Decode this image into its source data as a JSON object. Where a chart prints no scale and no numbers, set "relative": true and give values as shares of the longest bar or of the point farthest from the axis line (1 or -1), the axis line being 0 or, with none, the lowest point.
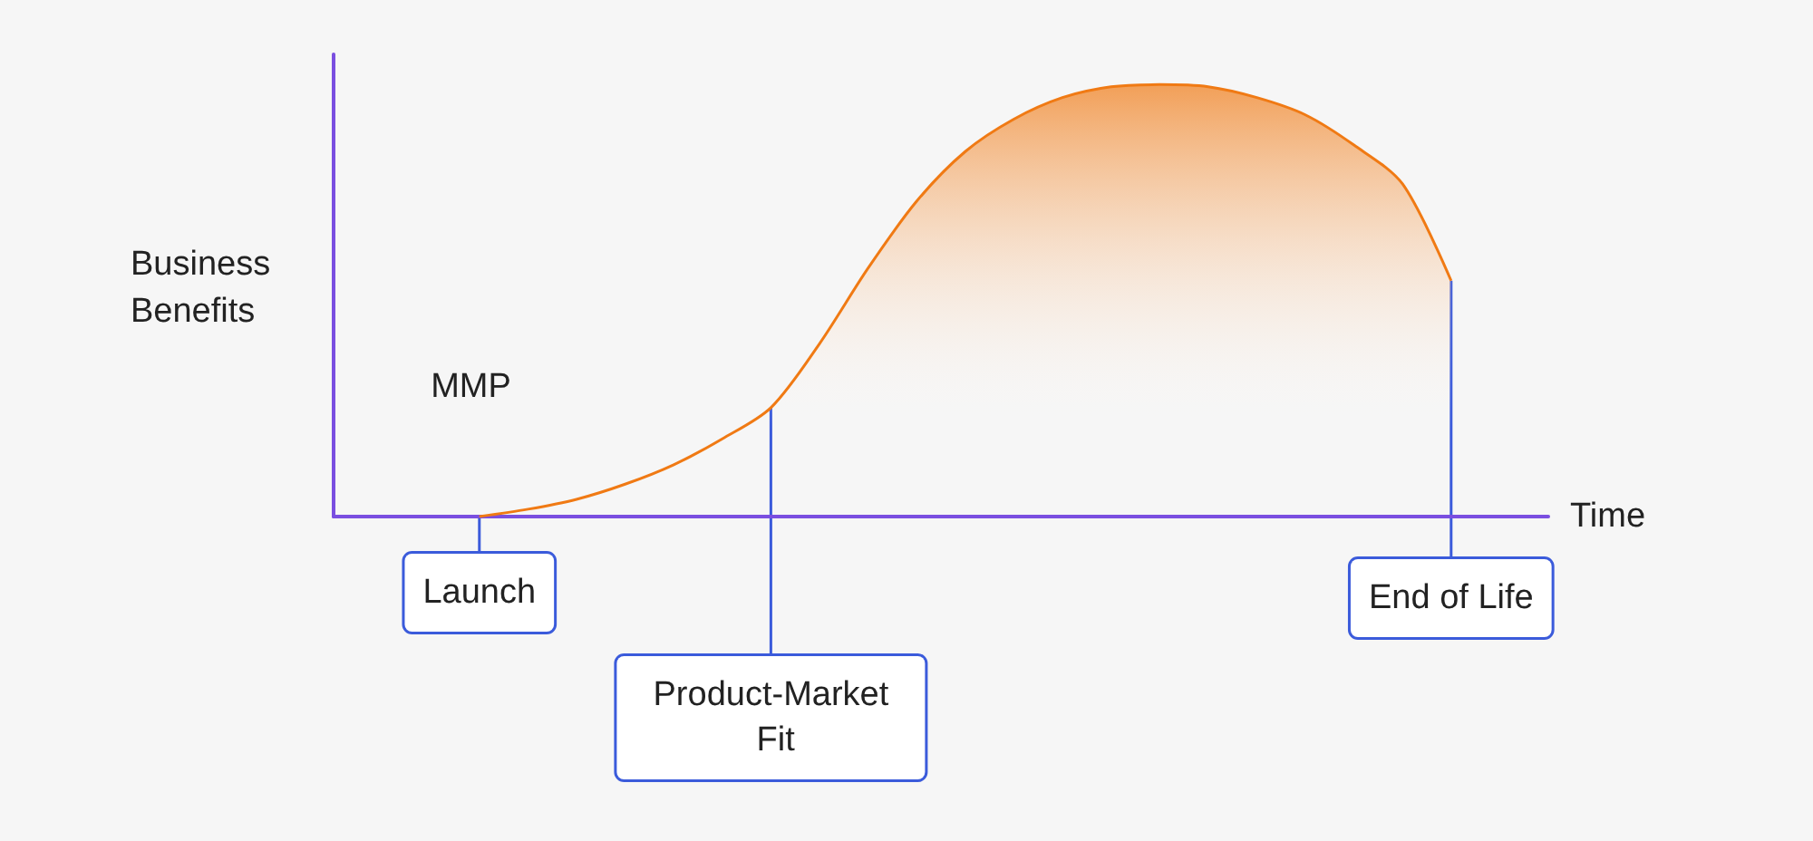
{
  "chart_data": {
    "type": "area",
    "relative": true,
    "xlabel": "Time",
    "ylabel": "Business Benefits",
    "categories": [
      null,
      null,
      null,
      null,
      null,
      null,
      null,
      null,
      null,
      null,
      null,
      null,
      null,
      null,
      null,
      null,
      null,
      null,
      null,
      null,
      null,
      null,
      null,
      null,
      null,
      null
    ],
    "values": [
      null,
      null,
      null,
      0,
      0.017,
      0.04,
      0.075,
      0.12,
      0.18,
      0.252,
      0.4,
      0.575,
      0.73,
      0.845,
      0.92,
      0.97,
      0.995,
      1,
      0.995,
      0.97,
      0.93,
      0.86,
      0.77,
      0.546,
      null,
      null
    ],
    "color": "#f07a14",
    "annotations": [
      "MMP",
      "Launch",
      "Product-Market Fit",
      "End of Life"
    ],
    "grid": false,
    "marker": "none"
  }
}
